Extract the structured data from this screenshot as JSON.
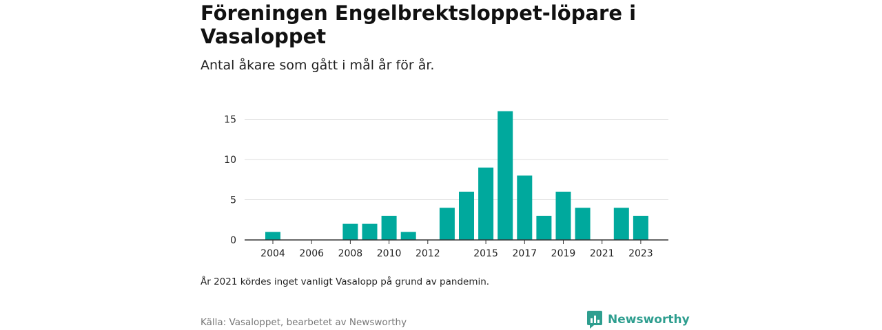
{
  "title": "Föreningen Engelbrektsloppet-löpare i Vasaloppet",
  "subtitle": "Antal åkare som gått i mål år för år.",
  "note": "År 2021 kördes inget vanligt Vasalopp på grund av pandemin.",
  "source": "Källa: Vasaloppet, bearbetet av Newsworthy",
  "brand": {
    "name": "Newsworthy",
    "icon": "newsworthy-logo-icon",
    "color": "#2e9e8f"
  },
  "colors": {
    "bar": "#00a99d",
    "grid": "#dddddd",
    "axis": "#333333"
  },
  "chart_data": {
    "type": "bar",
    "title": "Föreningen Engelbrektsloppet-löpare i Vasaloppet",
    "subtitle": "Antal åkare som gått i mål år för år.",
    "xlabel": "",
    "ylabel": "",
    "x": [
      2004,
      2005,
      2006,
      2007,
      2008,
      2009,
      2010,
      2011,
      2012,
      2013,
      2014,
      2015,
      2016,
      2017,
      2018,
      2019,
      2020,
      2021,
      2022,
      2023
    ],
    "values": [
      1,
      0,
      0,
      0,
      2,
      2,
      3,
      1,
      0,
      4,
      6,
      9,
      16,
      8,
      3,
      6,
      4,
      0,
      4,
      3
    ],
    "x_ticks": [
      "2004",
      "2006",
      "2008",
      "2010",
      "2012",
      "2015",
      "2017",
      "2019",
      "2021",
      "2023"
    ],
    "y_ticks": [
      0,
      5,
      10,
      15
    ],
    "ylim": [
      0,
      16
    ],
    "grid": true,
    "legend": "none"
  }
}
